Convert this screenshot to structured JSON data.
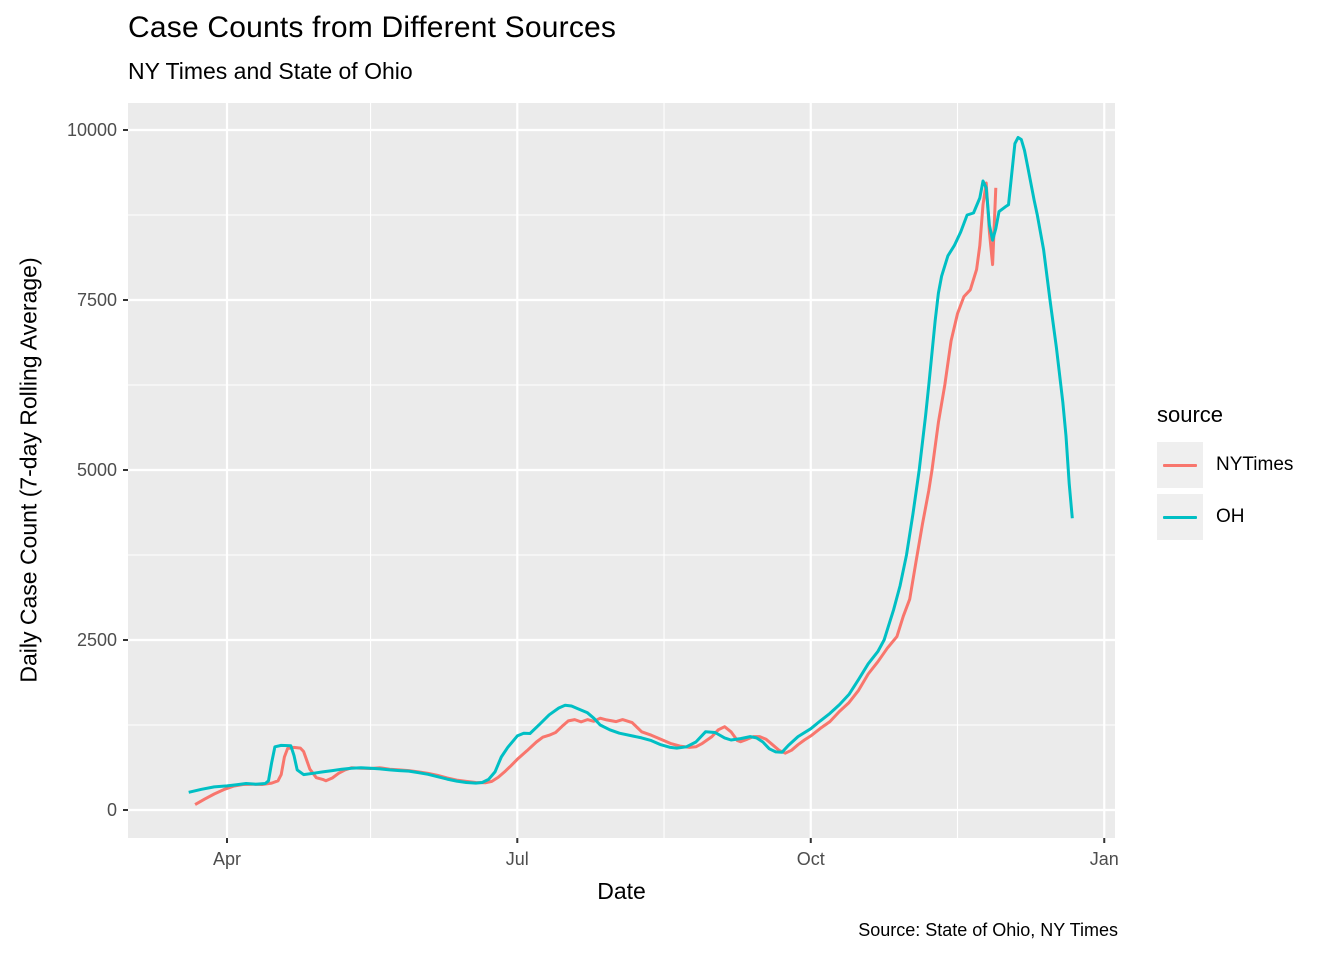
{
  "chart_data": {
    "type": "line",
    "title": "Case Counts from Different Sources",
    "subtitle": "NY Times and State of Ohio",
    "caption": "Source: State of Ohio, NY Times",
    "xlabel": "Date",
    "ylabel": "Daily Case Count (7-day Rolling Average)",
    "ylim": [
      0,
      10000
    ],
    "grid": true,
    "legend_position": "right",
    "x_ticks": [
      {
        "label": "Apr",
        "date": "2020-04-01"
      },
      {
        "label": "Jul",
        "date": "2020-07-01"
      },
      {
        "label": "Oct",
        "date": "2020-10-01"
      },
      {
        "label": "Jan",
        "date": "2021-01-01"
      }
    ],
    "x_minor": [
      "2020-05-16",
      "2020-08-16",
      "2020-11-16"
    ],
    "y_ticks": [
      0,
      2500,
      5000,
      7500,
      10000
    ],
    "y_minor": [
      1250,
      3750,
      6250,
      8750
    ],
    "series": [
      {
        "name": "NYTimes",
        "color": "#F8766D",
        "points": [
          [
            "2020-03-22",
            80
          ],
          [
            "2020-03-25",
            160
          ],
          [
            "2020-03-28",
            235
          ],
          [
            "2020-03-31",
            300
          ],
          [
            "2020-04-03",
            350
          ],
          [
            "2020-04-06",
            375
          ],
          [
            "2020-04-09",
            380
          ],
          [
            "2020-04-12",
            375
          ],
          [
            "2020-04-15",
            395
          ],
          [
            "2020-04-17",
            430
          ],
          [
            "2020-04-18",
            520
          ],
          [
            "2020-04-19",
            780
          ],
          [
            "2020-04-20",
            905
          ],
          [
            "2020-04-22",
            920
          ],
          [
            "2020-04-24",
            910
          ],
          [
            "2020-04-25",
            860
          ],
          [
            "2020-04-27",
            600
          ],
          [
            "2020-04-29",
            475
          ],
          [
            "2020-05-01",
            450
          ],
          [
            "2020-05-02",
            430
          ],
          [
            "2020-05-04",
            470
          ],
          [
            "2020-05-06",
            540
          ],
          [
            "2020-05-08",
            590
          ],
          [
            "2020-05-10",
            620
          ],
          [
            "2020-05-13",
            615
          ],
          [
            "2020-05-16",
            610
          ],
          [
            "2020-05-19",
            620
          ],
          [
            "2020-05-22",
            600
          ],
          [
            "2020-05-25",
            590
          ],
          [
            "2020-05-28",
            580
          ],
          [
            "2020-05-31",
            560
          ],
          [
            "2020-06-03",
            540
          ],
          [
            "2020-06-06",
            510
          ],
          [
            "2020-06-09",
            470
          ],
          [
            "2020-06-12",
            440
          ],
          [
            "2020-06-15",
            420
          ],
          [
            "2020-06-18",
            405
          ],
          [
            "2020-06-21",
            400
          ],
          [
            "2020-06-23",
            420
          ],
          [
            "2020-06-25",
            480
          ],
          [
            "2020-06-27",
            560
          ],
          [
            "2020-06-29",
            650
          ],
          [
            "2020-07-01",
            745
          ],
          [
            "2020-07-04",
            870
          ],
          [
            "2020-07-07",
            1000
          ],
          [
            "2020-07-09",
            1070
          ],
          [
            "2020-07-11",
            1100
          ],
          [
            "2020-07-13",
            1140
          ],
          [
            "2020-07-15",
            1230
          ],
          [
            "2020-07-17",
            1310
          ],
          [
            "2020-07-19",
            1330
          ],
          [
            "2020-07-21",
            1295
          ],
          [
            "2020-07-23",
            1330
          ],
          [
            "2020-07-25",
            1305
          ],
          [
            "2020-07-27",
            1350
          ],
          [
            "2020-07-29",
            1325
          ],
          [
            "2020-08-01",
            1300
          ],
          [
            "2020-08-03",
            1330
          ],
          [
            "2020-08-06",
            1285
          ],
          [
            "2020-08-09",
            1150
          ],
          [
            "2020-08-12",
            1100
          ],
          [
            "2020-08-15",
            1040
          ],
          [
            "2020-08-18",
            980
          ],
          [
            "2020-08-21",
            940
          ],
          [
            "2020-08-24",
            920
          ],
          [
            "2020-08-26",
            930
          ],
          [
            "2020-08-28",
            980
          ],
          [
            "2020-08-31",
            1080
          ],
          [
            "2020-09-02",
            1180
          ],
          [
            "2020-09-04",
            1225
          ],
          [
            "2020-09-06",
            1150
          ],
          [
            "2020-09-08",
            1020
          ],
          [
            "2020-09-09",
            1005
          ],
          [
            "2020-09-11",
            1040
          ],
          [
            "2020-09-13",
            1080
          ],
          [
            "2020-09-15",
            1080
          ],
          [
            "2020-09-17",
            1040
          ],
          [
            "2020-09-19",
            960
          ],
          [
            "2020-09-21",
            880
          ],
          [
            "2020-09-23",
            835
          ],
          [
            "2020-09-25",
            880
          ],
          [
            "2020-09-27",
            960
          ],
          [
            "2020-09-29",
            1030
          ],
          [
            "2020-10-01",
            1090
          ],
          [
            "2020-10-04",
            1200
          ],
          [
            "2020-10-07",
            1300
          ],
          [
            "2020-10-10",
            1450
          ],
          [
            "2020-10-13",
            1580
          ],
          [
            "2020-10-16",
            1760
          ],
          [
            "2020-10-19",
            2000
          ],
          [
            "2020-10-22",
            2180
          ],
          [
            "2020-10-25",
            2380
          ],
          [
            "2020-10-28",
            2550
          ],
          [
            "2020-10-30",
            2850
          ],
          [
            "2020-11-01",
            3100
          ],
          [
            "2020-11-03",
            3650
          ],
          [
            "2020-11-05",
            4200
          ],
          [
            "2020-11-07",
            4700
          ],
          [
            "2020-11-08",
            5000
          ],
          [
            "2020-11-10",
            5700
          ],
          [
            "2020-11-12",
            6250
          ],
          [
            "2020-11-14",
            6900
          ],
          [
            "2020-11-16",
            7300
          ],
          [
            "2020-11-18",
            7550
          ],
          [
            "2020-11-20",
            7650
          ],
          [
            "2020-11-22",
            7950
          ],
          [
            "2020-11-23",
            8300
          ],
          [
            "2020-11-24",
            8900
          ],
          [
            "2020-11-25",
            9220
          ],
          [
            "2020-11-26",
            8500
          ],
          [
            "2020-11-27",
            8020
          ],
          [
            "2020-11-28",
            9150
          ]
        ]
      },
      {
        "name": "OH",
        "color": "#00BFC4",
        "points": [
          [
            "2020-03-20",
            260
          ],
          [
            "2020-03-24",
            305
          ],
          [
            "2020-03-28",
            340
          ],
          [
            "2020-04-01",
            355
          ],
          [
            "2020-04-04",
            370
          ],
          [
            "2020-04-07",
            390
          ],
          [
            "2020-04-10",
            380
          ],
          [
            "2020-04-13",
            390
          ],
          [
            "2020-04-14",
            430
          ],
          [
            "2020-04-15",
            700
          ],
          [
            "2020-04-16",
            930
          ],
          [
            "2020-04-18",
            950
          ],
          [
            "2020-04-21",
            945
          ],
          [
            "2020-04-22",
            800
          ],
          [
            "2020-04-23",
            590
          ],
          [
            "2020-04-25",
            520
          ],
          [
            "2020-04-28",
            540
          ],
          [
            "2020-05-01",
            560
          ],
          [
            "2020-05-04",
            580
          ],
          [
            "2020-05-07",
            600
          ],
          [
            "2020-05-10",
            615
          ],
          [
            "2020-05-13",
            620
          ],
          [
            "2020-05-16",
            615
          ],
          [
            "2020-05-19",
            605
          ],
          [
            "2020-05-22",
            590
          ],
          [
            "2020-05-25",
            580
          ],
          [
            "2020-05-28",
            572
          ],
          [
            "2020-05-31",
            550
          ],
          [
            "2020-06-03",
            525
          ],
          [
            "2020-06-06",
            490
          ],
          [
            "2020-06-09",
            455
          ],
          [
            "2020-06-12",
            425
          ],
          [
            "2020-06-15",
            405
          ],
          [
            "2020-06-18",
            395
          ],
          [
            "2020-06-20",
            405
          ],
          [
            "2020-06-22",
            450
          ],
          [
            "2020-06-24",
            560
          ],
          [
            "2020-06-26",
            780
          ],
          [
            "2020-06-28",
            920
          ],
          [
            "2020-07-01",
            1090
          ],
          [
            "2020-07-03",
            1130
          ],
          [
            "2020-07-05",
            1125
          ],
          [
            "2020-07-08",
            1260
          ],
          [
            "2020-07-11",
            1400
          ],
          [
            "2020-07-14",
            1500
          ],
          [
            "2020-07-16",
            1540
          ],
          [
            "2020-07-18",
            1530
          ],
          [
            "2020-07-20",
            1490
          ],
          [
            "2020-07-23",
            1430
          ],
          [
            "2020-07-25",
            1350
          ],
          [
            "2020-07-27",
            1250
          ],
          [
            "2020-07-30",
            1180
          ],
          [
            "2020-08-02",
            1130
          ],
          [
            "2020-08-06",
            1090
          ],
          [
            "2020-08-09",
            1060
          ],
          [
            "2020-08-12",
            1020
          ],
          [
            "2020-08-15",
            960
          ],
          [
            "2020-08-18",
            920
          ],
          [
            "2020-08-20",
            910
          ],
          [
            "2020-08-23",
            930
          ],
          [
            "2020-08-26",
            1000
          ],
          [
            "2020-08-29",
            1150
          ],
          [
            "2020-09-01",
            1140
          ],
          [
            "2020-09-04",
            1060
          ],
          [
            "2020-09-06",
            1030
          ],
          [
            "2020-09-09",
            1050
          ],
          [
            "2020-09-12",
            1080
          ],
          [
            "2020-09-14",
            1060
          ],
          [
            "2020-09-16",
            1000
          ],
          [
            "2020-09-18",
            900
          ],
          [
            "2020-09-20",
            855
          ],
          [
            "2020-09-22",
            850
          ],
          [
            "2020-09-24",
            950
          ],
          [
            "2020-09-27",
            1080
          ],
          [
            "2020-10-01",
            1195
          ],
          [
            "2020-10-04",
            1310
          ],
          [
            "2020-10-07",
            1420
          ],
          [
            "2020-10-10",
            1550
          ],
          [
            "2020-10-13",
            1700
          ],
          [
            "2020-10-16",
            1920
          ],
          [
            "2020-10-19",
            2150
          ],
          [
            "2020-10-22",
            2330
          ],
          [
            "2020-10-24",
            2500
          ],
          [
            "2020-10-27",
            2950
          ],
          [
            "2020-10-29",
            3300
          ],
          [
            "2020-10-31",
            3750
          ],
          [
            "2020-11-02",
            4350
          ],
          [
            "2020-11-04",
            5000
          ],
          [
            "2020-11-06",
            5800
          ],
          [
            "2020-11-07",
            6250
          ],
          [
            "2020-11-09",
            7200
          ],
          [
            "2020-11-10",
            7600
          ],
          [
            "2020-11-11",
            7850
          ],
          [
            "2020-11-13",
            8150
          ],
          [
            "2020-11-15",
            8300
          ],
          [
            "2020-11-17",
            8500
          ],
          [
            "2020-11-19",
            8750
          ],
          [
            "2020-11-21",
            8780
          ],
          [
            "2020-11-23",
            9000
          ],
          [
            "2020-11-24",
            9250
          ],
          [
            "2020-11-25",
            9150
          ],
          [
            "2020-11-26",
            8600
          ],
          [
            "2020-11-27",
            8380
          ],
          [
            "2020-11-28",
            8550
          ],
          [
            "2020-11-29",
            8800
          ],
          [
            "2020-12-01",
            8870
          ],
          [
            "2020-12-02",
            8900
          ],
          [
            "2020-12-03",
            9350
          ],
          [
            "2020-12-04",
            9800
          ],
          [
            "2020-12-05",
            9890
          ],
          [
            "2020-12-06",
            9860
          ],
          [
            "2020-12-07",
            9700
          ],
          [
            "2020-12-08",
            9460
          ],
          [
            "2020-12-10",
            8970
          ],
          [
            "2020-12-11",
            8750
          ],
          [
            "2020-12-13",
            8240
          ],
          [
            "2020-12-15",
            7500
          ],
          [
            "2020-12-17",
            6800
          ],
          [
            "2020-12-18",
            6400
          ],
          [
            "2020-12-19",
            6000
          ],
          [
            "2020-12-20",
            5500
          ],
          [
            "2020-12-21",
            4800
          ],
          [
            "2020-12-22",
            4290
          ]
        ]
      }
    ]
  },
  "legend": {
    "title": "source",
    "items": [
      {
        "label": "NYTimes",
        "color": "#F8766D"
      },
      {
        "label": "OH",
        "color": "#00BFC4"
      }
    ]
  },
  "colors": {
    "panel_background": "#EBEBEB",
    "gridline": "#FFFFFF",
    "tick_label": "#4D4D4D",
    "tick_mark": "#333333",
    "legend_key_background": "#EFEFEF",
    "nytimes_line": "#F8766D",
    "oh_line": "#00BFC4"
  }
}
